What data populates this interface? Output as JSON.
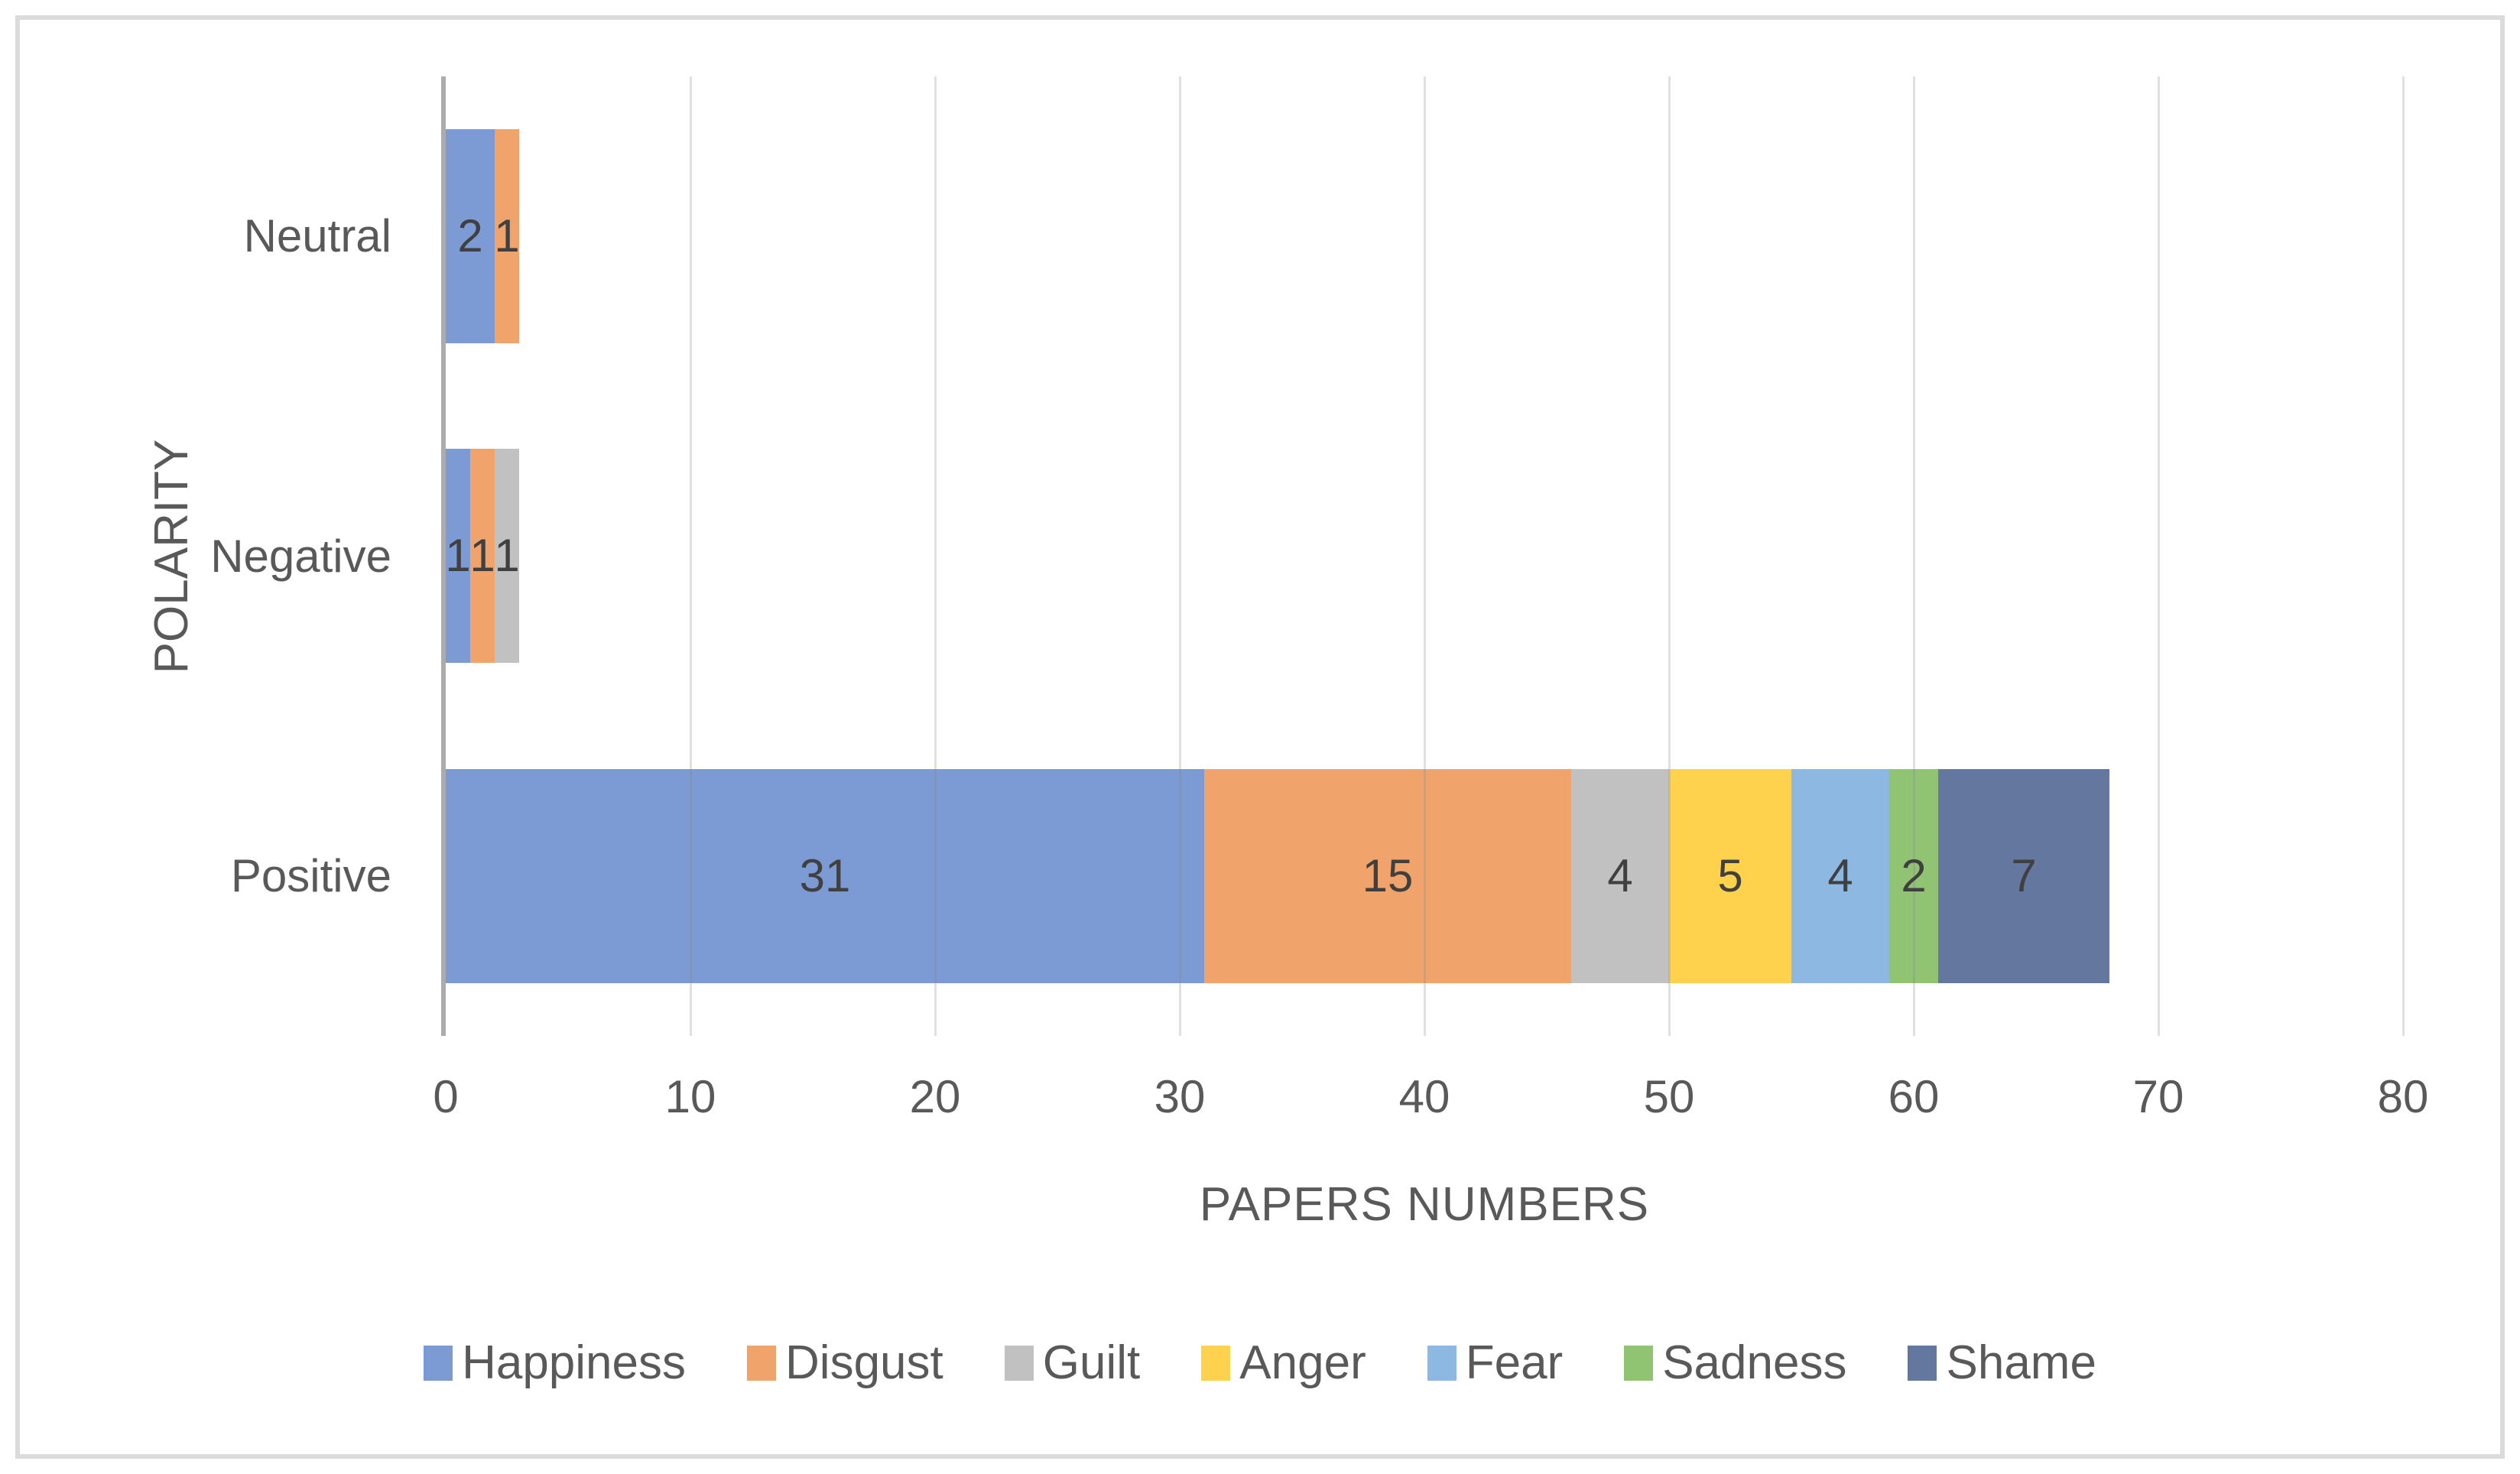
{
  "chart_data": {
    "type": "bar",
    "orientation": "horizontal",
    "stacked": true,
    "title": "",
    "categories": [
      "Neutral",
      "Negative",
      "Positive"
    ],
    "series": [
      {
        "name": "Happiness",
        "color": "#7C9BD5",
        "values": [
          2,
          1,
          31
        ]
      },
      {
        "name": "Disgust",
        "color": "#F0A46C",
        "values": [
          1,
          1,
          15
        ]
      },
      {
        "name": "Guilt",
        "color": "#C1C1C1",
        "values": [
          0,
          1,
          4
        ]
      },
      {
        "name": "Anger",
        "color": "#FFD24D",
        "values": [
          0,
          0,
          5
        ]
      },
      {
        "name": "Fear",
        "color": "#8CB8E2",
        "values": [
          0,
          0,
          4
        ]
      },
      {
        "name": "Sadness",
        "color": "#90C472",
        "values": [
          0,
          0,
          2
        ]
      },
      {
        "name": "Shame",
        "color": "#64779E",
        "values": [
          0,
          0,
          7
        ]
      }
    ],
    "xlabel": "PAPERS NUMBERS",
    "ylabel": "POLARITY",
    "xlim": [
      0,
      80
    ],
    "xticks": [
      0,
      10,
      20,
      30,
      40,
      50,
      60,
      70,
      80
    ],
    "grid": true,
    "legend_position": "bottom",
    "data_labels": true
  },
  "colors": {
    "axis_text": "#595959",
    "data_label": "#404040",
    "gridline": "#DEDEDE",
    "axis_line": "#ACACAC",
    "frame_border": "#DBDBDB",
    "background": "#FFFFFF"
  }
}
